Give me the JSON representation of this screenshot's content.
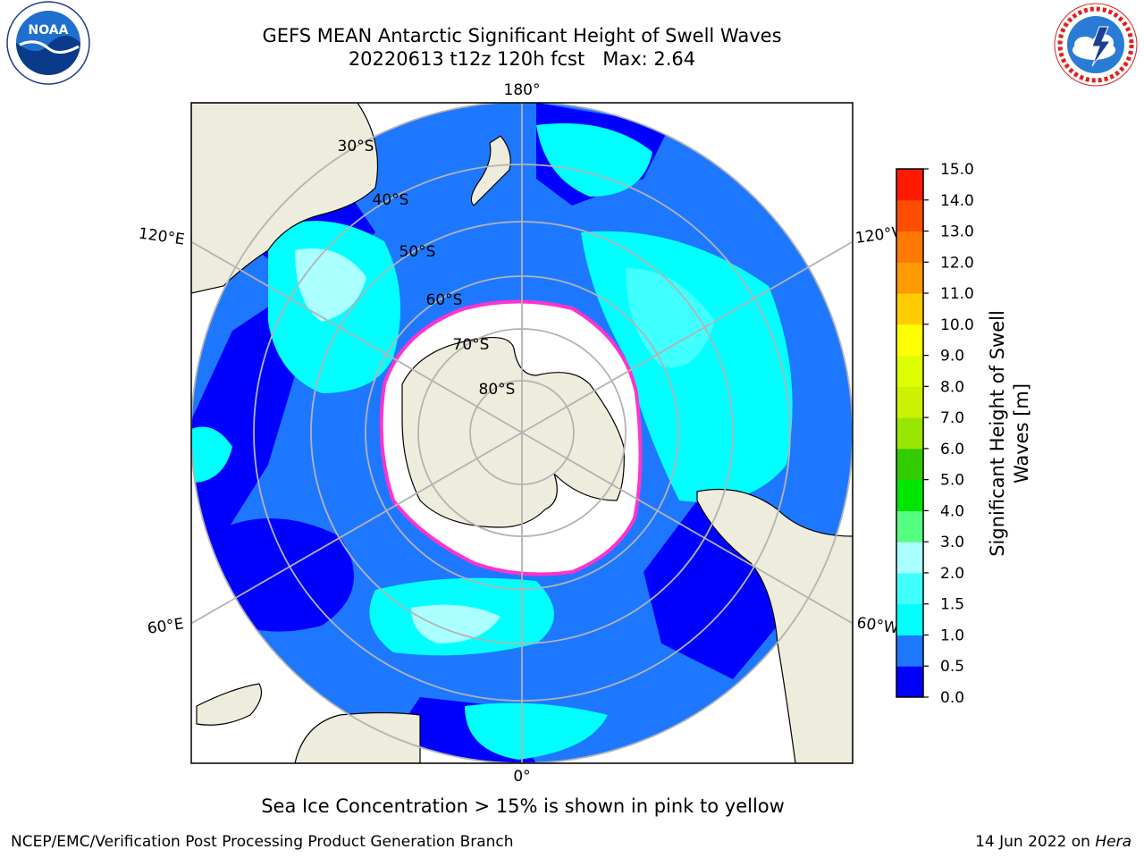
{
  "header": {
    "title_line1": "GEFS MEAN Antarctic Significant Height of Swell Waves",
    "title_line2": "20220613 t12z 120h fcst   Max: 2.64"
  },
  "logos": {
    "noaa": {
      "text": "NOAA",
      "ring_text": "NATIONAL OCEANIC AND ATMOSPHERIC ADMINISTRATION · U.S. DEPARTMENT OF COMMERCE"
    },
    "nws": {
      "ring_text": "NATIONAL WEATHER SERVICE"
    }
  },
  "map": {
    "projection": "south-polar-stereographic",
    "longitude_labels": {
      "top": "180°",
      "bottom": "0°",
      "upper_left": "120°E",
      "upper_right": "120°W",
      "lower_left": "60°E",
      "lower_right": "60°W"
    },
    "latitude_labels": [
      "30°S",
      "40°S",
      "50°S",
      "60°S",
      "70°S",
      "80°S"
    ],
    "colors": {
      "land": "#eeecdc",
      "ocean_deep": "#0000ff",
      "ocean_mid": "#1e78ff",
      "ocean_light": "#00ffff",
      "ice": "#ffffff",
      "ice_edge": "#ff33cc",
      "graticule": "#b3b3b3"
    }
  },
  "colorbar": {
    "label_line1": "Significant Height of Swell",
    "label_line2": "Waves [m]",
    "ticks": [
      "0.0",
      "0.5",
      "1.0",
      "1.5",
      "2.0",
      "3.0",
      "4.0",
      "5.0",
      "6.0",
      "7.0",
      "8.0",
      "9.0",
      "10.0",
      "11.0",
      "12.0",
      "13.0",
      "14.0",
      "15.0"
    ],
    "colors": [
      "#0000ff",
      "#1e78ff",
      "#00ffff",
      "#40ffff",
      "#aaffff",
      "#55ff80",
      "#00e600",
      "#33cc00",
      "#99e600",
      "#ccf200",
      "#ddff00",
      "#ffff00",
      "#ffcc00",
      "#ff9900",
      "#ff7a00",
      "#ff4d00",
      "#ff1a00"
    ]
  },
  "footnote": "Sea Ice Concentration > 15% is shown in pink to yellow",
  "footer": {
    "left": "NCEP/EMC/Verification Post Processing Product Generation Branch",
    "date": "14 Jun 2022 on ",
    "machine": "Hera"
  }
}
